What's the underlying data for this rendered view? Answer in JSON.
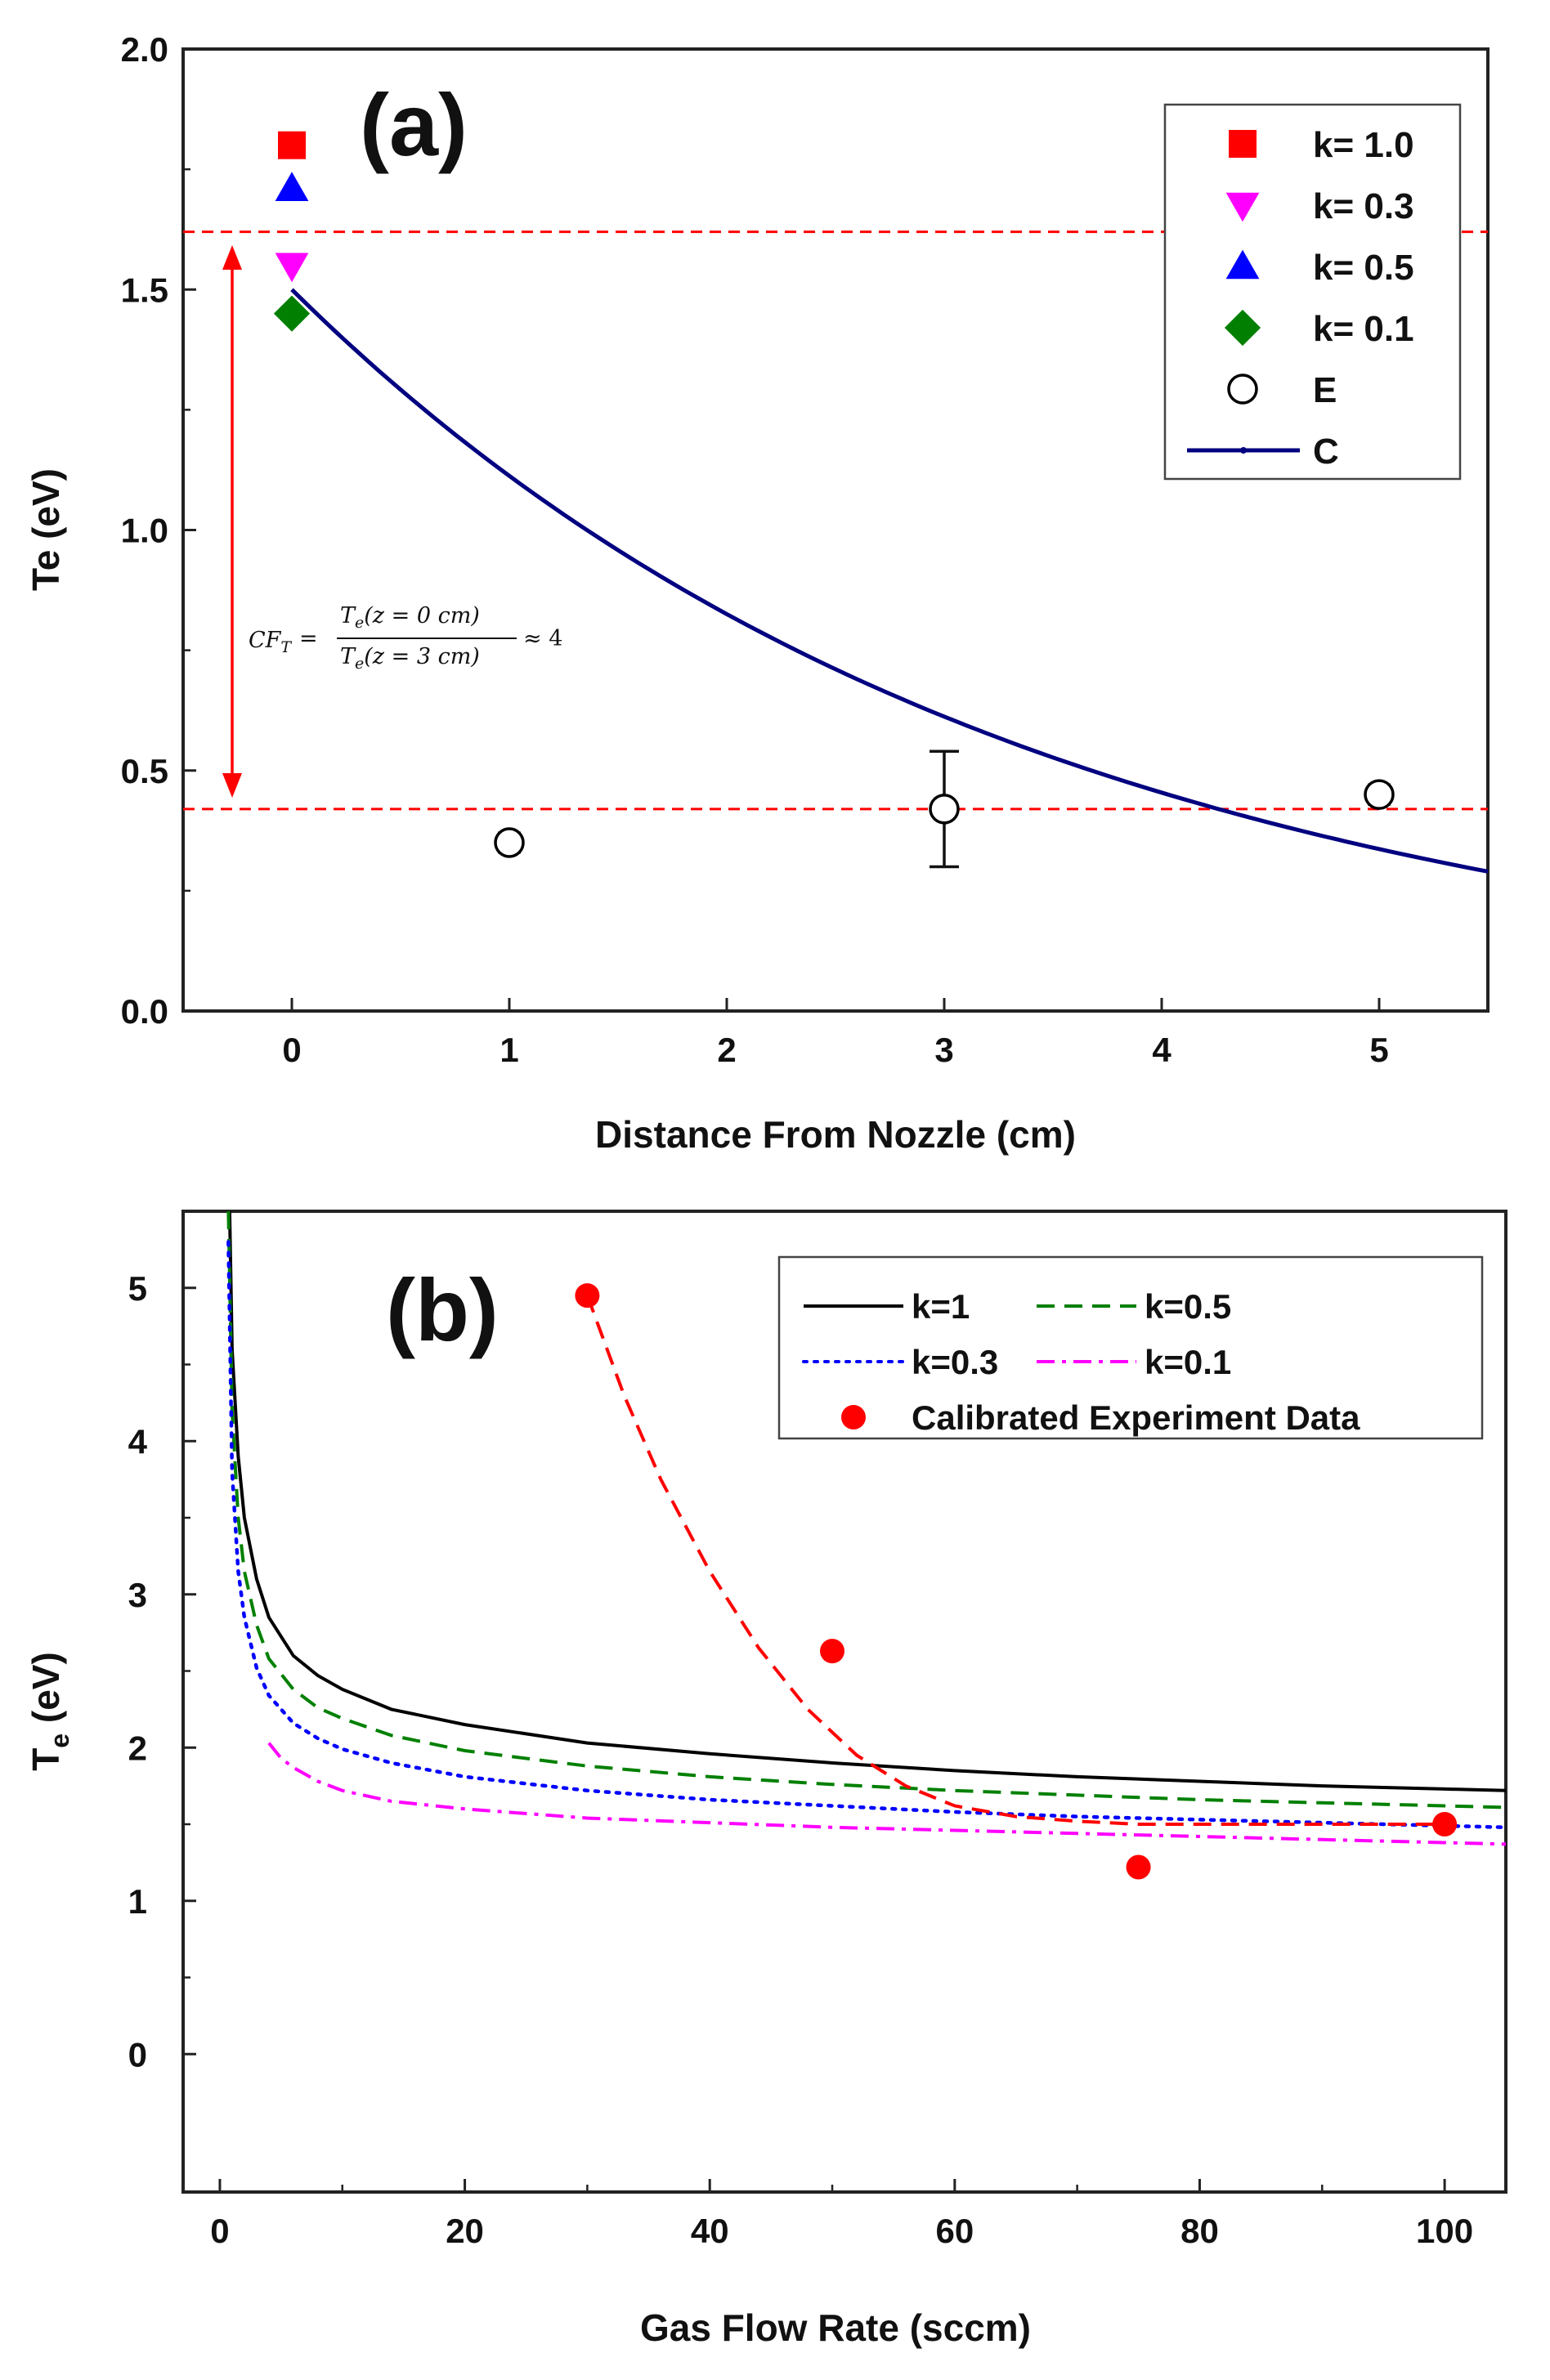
{
  "chart_data": [
    {
      "type": "scatter",
      "panel_label": "(a)",
      "xlabel": "Distance From Nozzle (cm)",
      "ylabel": "Te (eV)",
      "xlim": [
        -0.5,
        5.5
      ],
      "ylim": [
        0.0,
        2.0
      ],
      "xticks": [
        "0",
        "1",
        "2",
        "3",
        "4",
        "5"
      ],
      "yticks": [
        "0.0",
        "0.5",
        "1.0",
        "1.5",
        "2.0"
      ],
      "legend_position": "top-right",
      "series": [
        {
          "name": "k= 1.0",
          "marker": "square",
          "color": "#ff0000",
          "x": [
            0
          ],
          "y": [
            1.8
          ]
        },
        {
          "name": "k= 0.3",
          "marker": "triangle-down",
          "color": "#ff00ff",
          "x": [
            0
          ],
          "y": [
            1.55
          ]
        },
        {
          "name": "k= 0.5",
          "marker": "triangle-up",
          "color": "#0000ff",
          "x": [
            0
          ],
          "y": [
            1.71
          ]
        },
        {
          "name": "k= 0.1",
          "marker": "diamond",
          "color": "#007f00",
          "x": [
            0
          ],
          "y": [
            1.45
          ]
        },
        {
          "name": "E",
          "marker": "open-circle",
          "color": "#000000",
          "x": [
            1,
            3,
            5
          ],
          "y": [
            0.35,
            0.42,
            0.45
          ],
          "err": [
            0.02,
            0.12,
            0.02
          ]
        },
        {
          "name": "C",
          "marker": "line",
          "color": "#000080",
          "x": [
            0,
            0.5,
            1,
            1.5,
            2,
            2.5,
            3,
            3.5,
            4,
            4.5,
            5,
            5.5
          ],
          "y": [
            1.5,
            1.29,
            1.11,
            0.96,
            0.83,
            0.71,
            0.61,
            0.53,
            0.46,
            0.39,
            0.34,
            0.29
          ]
        }
      ],
      "reference_lines": {
        "y_values": [
          1.62,
          0.42
        ],
        "color": "#ff0000"
      },
      "annotation": {
        "equation_lhs": "CF",
        "equation_sub": "T",
        "equation_num": "T",
        "equation_num_sub": "e",
        "equation_num_arg": "(z = 0 cm)",
        "equation_den": "T",
        "equation_den_sub": "e",
        "equation_den_arg": "(z = 3 cm)",
        "equation_rhs": "≈ 4",
        "equals_sign": "="
      }
    },
    {
      "type": "line",
      "panel_label": "(b)",
      "xlabel": "Gas Flow Rate (sccm)",
      "ylabel_main": "T",
      "ylabel_sub": "e",
      "ylabel_unit": " (eV)",
      "xlim": [
        -3,
        105
      ],
      "ylim": [
        -0.9,
        5.5
      ],
      "xticks": [
        "0",
        "20",
        "40",
        "60",
        "80",
        "100"
      ],
      "yticks": [
        "0",
        "1",
        "2",
        "3",
        "4",
        "5"
      ],
      "legend_position": "top-right",
      "series": [
        {
          "name": "k=1",
          "style": "solid",
          "color": "#000000",
          "x": [
            0.8,
            1,
            1.5,
            2,
            3,
            4,
            6,
            8,
            10,
            14,
            20,
            30,
            40,
            50,
            60,
            70,
            80,
            90,
            100,
            105
          ],
          "y": [
            5.5,
            4.6,
            3.9,
            3.5,
            3.1,
            2.85,
            2.6,
            2.47,
            2.38,
            2.25,
            2.15,
            2.03,
            1.96,
            1.9,
            1.85,
            1.81,
            1.78,
            1.75,
            1.73,
            1.72
          ]
        },
        {
          "name": "k=0.5",
          "style": "dashed",
          "color": "#008000",
          "x": [
            0.7,
            1,
            1.5,
            2,
            3,
            4,
            6,
            8,
            10,
            14,
            20,
            30,
            40,
            50,
            60,
            70,
            80,
            90,
            100,
            105
          ],
          "y": [
            5.5,
            4.2,
            3.5,
            3.15,
            2.8,
            2.58,
            2.38,
            2.26,
            2.19,
            2.08,
            1.98,
            1.88,
            1.81,
            1.76,
            1.72,
            1.69,
            1.66,
            1.64,
            1.62,
            1.61
          ]
        },
        {
          "name": "k=0.3",
          "style": "dotted",
          "color": "#0000ff",
          "x": [
            0.7,
            1,
            1.5,
            2,
            3,
            4,
            6,
            8,
            10,
            14,
            20,
            30,
            40,
            50,
            60,
            70,
            80,
            90,
            100,
            105
          ],
          "y": [
            5.3,
            3.8,
            3.15,
            2.85,
            2.52,
            2.34,
            2.16,
            2.06,
            1.99,
            1.9,
            1.81,
            1.72,
            1.66,
            1.62,
            1.58,
            1.55,
            1.53,
            1.51,
            1.49,
            1.48
          ]
        },
        {
          "name": "k=0.1",
          "style": "dash-dot",
          "color": "#ff00ff",
          "x": [
            4,
            5,
            6,
            8,
            10,
            14,
            20,
            30,
            40,
            50,
            60,
            70,
            80,
            90,
            100,
            105
          ],
          "y": [
            2.03,
            1.93,
            1.87,
            1.78,
            1.72,
            1.65,
            1.6,
            1.54,
            1.51,
            1.48,
            1.46,
            1.44,
            1.42,
            1.4,
            1.38,
            1.37
          ]
        },
        {
          "name": "Calibrated Experiment Data",
          "style": "markers",
          "color": "#ff0000",
          "x": [
            30,
            50,
            75,
            100
          ],
          "y": [
            4.95,
            2.63,
            1.22,
            1.5
          ]
        }
      ],
      "fit_curve": {
        "style": "dashed",
        "color": "#ff0000",
        "x": [
          30,
          33,
          36,
          40,
          44,
          48,
          52,
          56,
          60,
          65,
          70,
          75,
          80,
          85,
          90,
          95,
          100
        ],
        "y": [
          4.95,
          4.3,
          3.75,
          3.15,
          2.65,
          2.25,
          1.95,
          1.75,
          1.62,
          1.55,
          1.52,
          1.5,
          1.5,
          1.5,
          1.5,
          1.5,
          1.5
        ]
      }
    }
  ]
}
